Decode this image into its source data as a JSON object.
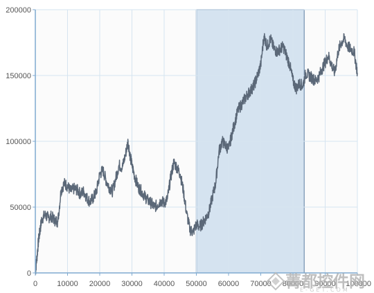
{
  "chart_data": {
    "type": "line",
    "title": "",
    "xlabel": "",
    "ylabel": "",
    "xlim": [
      0,
      100000
    ],
    "ylim": [
      0,
      200000
    ],
    "xticks": [
      0,
      10000,
      20000,
      30000,
      40000,
      50000,
      60000,
      70000,
      80000,
      90000,
      100000
    ],
    "xtick_labels": [
      "0",
      "10000",
      "20000",
      "30000",
      "40000",
      "50000",
      "60000",
      "70000",
      "80000",
      "90000",
      "100000"
    ],
    "yticks": [
      0,
      50000,
      100000,
      150000,
      200000
    ],
    "ytick_labels": [
      "0",
      "50000",
      "100000",
      "150000",
      "200000"
    ],
    "grid": true,
    "legend": "none",
    "highlight_range": {
      "x": [
        50000,
        83500
      ],
      "color": "#d5e3f0",
      "edge_color": "#8aa3bd"
    },
    "colors": {
      "line": "#5b6878",
      "grid": "#d6e4f0",
      "axis": "#7faad0",
      "plot_bg": "#fbfbfb"
    },
    "series": [
      {
        "values": [
          [
            0,
            0
          ],
          [
            500,
            12000
          ],
          [
            1000,
            25000
          ],
          [
            1500,
            33000
          ],
          [
            2000,
            41000
          ],
          [
            3000,
            44000
          ],
          [
            4000,
            42000
          ],
          [
            5000,
            43000
          ],
          [
            6000,
            40000
          ],
          [
            7000,
            39000
          ],
          [
            8000,
            63000
          ],
          [
            9000,
            68000
          ],
          [
            10000,
            66000
          ],
          [
            11000,
            62000
          ],
          [
            12000,
            64000
          ],
          [
            13000,
            63000
          ],
          [
            14000,
            60000
          ],
          [
            15000,
            62000
          ],
          [
            16000,
            57000
          ],
          [
            17000,
            54000
          ],
          [
            18000,
            57000
          ],
          [
            19000,
            62000
          ],
          [
            20000,
            75000
          ],
          [
            21000,
            78000
          ],
          [
            22000,
            70000
          ],
          [
            23000,
            65000
          ],
          [
            24000,
            62000
          ],
          [
            25000,
            72000
          ],
          [
            26000,
            82000
          ],
          [
            27000,
            80000
          ],
          [
            28000,
            90000
          ],
          [
            28800,
            100000
          ],
          [
            29500,
            88000
          ],
          [
            30000,
            82000
          ],
          [
            31000,
            72000
          ],
          [
            32000,
            65000
          ],
          [
            33000,
            62000
          ],
          [
            34000,
            58000
          ],
          [
            35000,
            55000
          ],
          [
            36000,
            53000
          ],
          [
            37000,
            50000
          ],
          [
            38000,
            52000
          ],
          [
            39000,
            55000
          ],
          [
            40000,
            53000
          ],
          [
            41000,
            56000
          ],
          [
            42000,
            72000
          ],
          [
            43000,
            84000
          ],
          [
            44000,
            80000
          ],
          [
            45000,
            75000
          ],
          [
            46000,
            62000
          ],
          [
            47000,
            45000
          ],
          [
            48000,
            33000
          ],
          [
            49000,
            31000
          ],
          [
            50000,
            37000
          ],
          [
            51000,
            35000
          ],
          [
            52000,
            38000
          ],
          [
            53000,
            42000
          ],
          [
            54000,
            47000
          ],
          [
            55000,
            58000
          ],
          [
            56000,
            68000
          ],
          [
            57000,
            92000
          ],
          [
            58000,
            100000
          ],
          [
            59000,
            97000
          ],
          [
            60000,
            94000
          ],
          [
            61000,
            105000
          ],
          [
            62000,
            115000
          ],
          [
            63000,
            124000
          ],
          [
            64000,
            128000
          ],
          [
            65000,
            132000
          ],
          [
            66000,
            136000
          ],
          [
            67000,
            139000
          ],
          [
            68000,
            143000
          ],
          [
            69000,
            150000
          ],
          [
            70000,
            158000
          ],
          [
            71000,
            180000
          ],
          [
            72000,
            172000
          ],
          [
            73000,
            178000
          ],
          [
            74000,
            171000
          ],
          [
            75000,
            168000
          ],
          [
            76000,
            170000
          ],
          [
            77000,
            172000
          ],
          [
            78000,
            165000
          ],
          [
            79000,
            158000
          ],
          [
            80000,
            146000
          ],
          [
            81000,
            140000
          ],
          [
            82000,
            144000
          ],
          [
            83000,
            142000
          ],
          [
            84000,
            152000
          ],
          [
            85000,
            150000
          ],
          [
            86000,
            148000
          ],
          [
            87000,
            146000
          ],
          [
            88000,
            149000
          ],
          [
            89000,
            155000
          ],
          [
            90000,
            160000
          ],
          [
            91000,
            165000
          ],
          [
            92000,
            158000
          ],
          [
            93000,
            152000
          ],
          [
            94000,
            168000
          ],
          [
            95000,
            175000
          ],
          [
            96000,
            178000
          ],
          [
            97000,
            172000
          ],
          [
            98000,
            170000
          ],
          [
            99000,
            168000
          ],
          [
            100000,
            152000
          ]
        ]
      }
    ]
  },
  "watermark": {
    "text_cn": "菁都控件网",
    "text_en": "E-GET.COM"
  }
}
